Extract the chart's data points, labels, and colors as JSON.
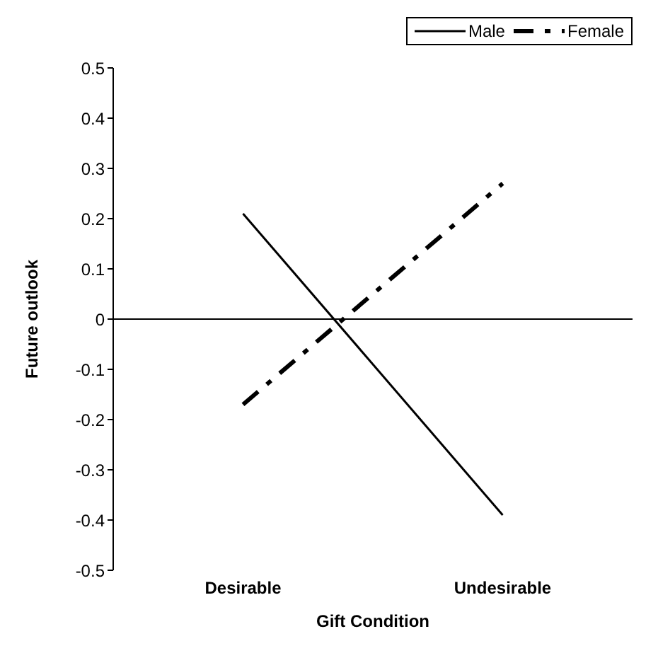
{
  "chart_data": {
    "type": "line",
    "xlabel": "Gift Condition",
    "ylabel": "Future outlook",
    "categories": [
      "Desirable",
      "Undesirable"
    ],
    "series": [
      {
        "name": "Male",
        "color": "#000000",
        "values": [
          0.21,
          -0.39
        ],
        "line_style": "solid"
      },
      {
        "name": "Female",
        "color": "#000000",
        "values": [
          -0.17,
          0.27
        ],
        "line_style": "dashed"
      }
    ],
    "ylim": [
      -0.5,
      0.5
    ],
    "yticks": [
      -0.5,
      -0.4,
      -0.3,
      -0.2,
      -0.1,
      0,
      0.1,
      0.2,
      0.3,
      0.4,
      0.5
    ],
    "ref_lines": [
      {
        "axis": "y",
        "value": 0,
        "color": "#000000"
      }
    ],
    "grid": false,
    "legend": "top right",
    "marker": "none"
  }
}
